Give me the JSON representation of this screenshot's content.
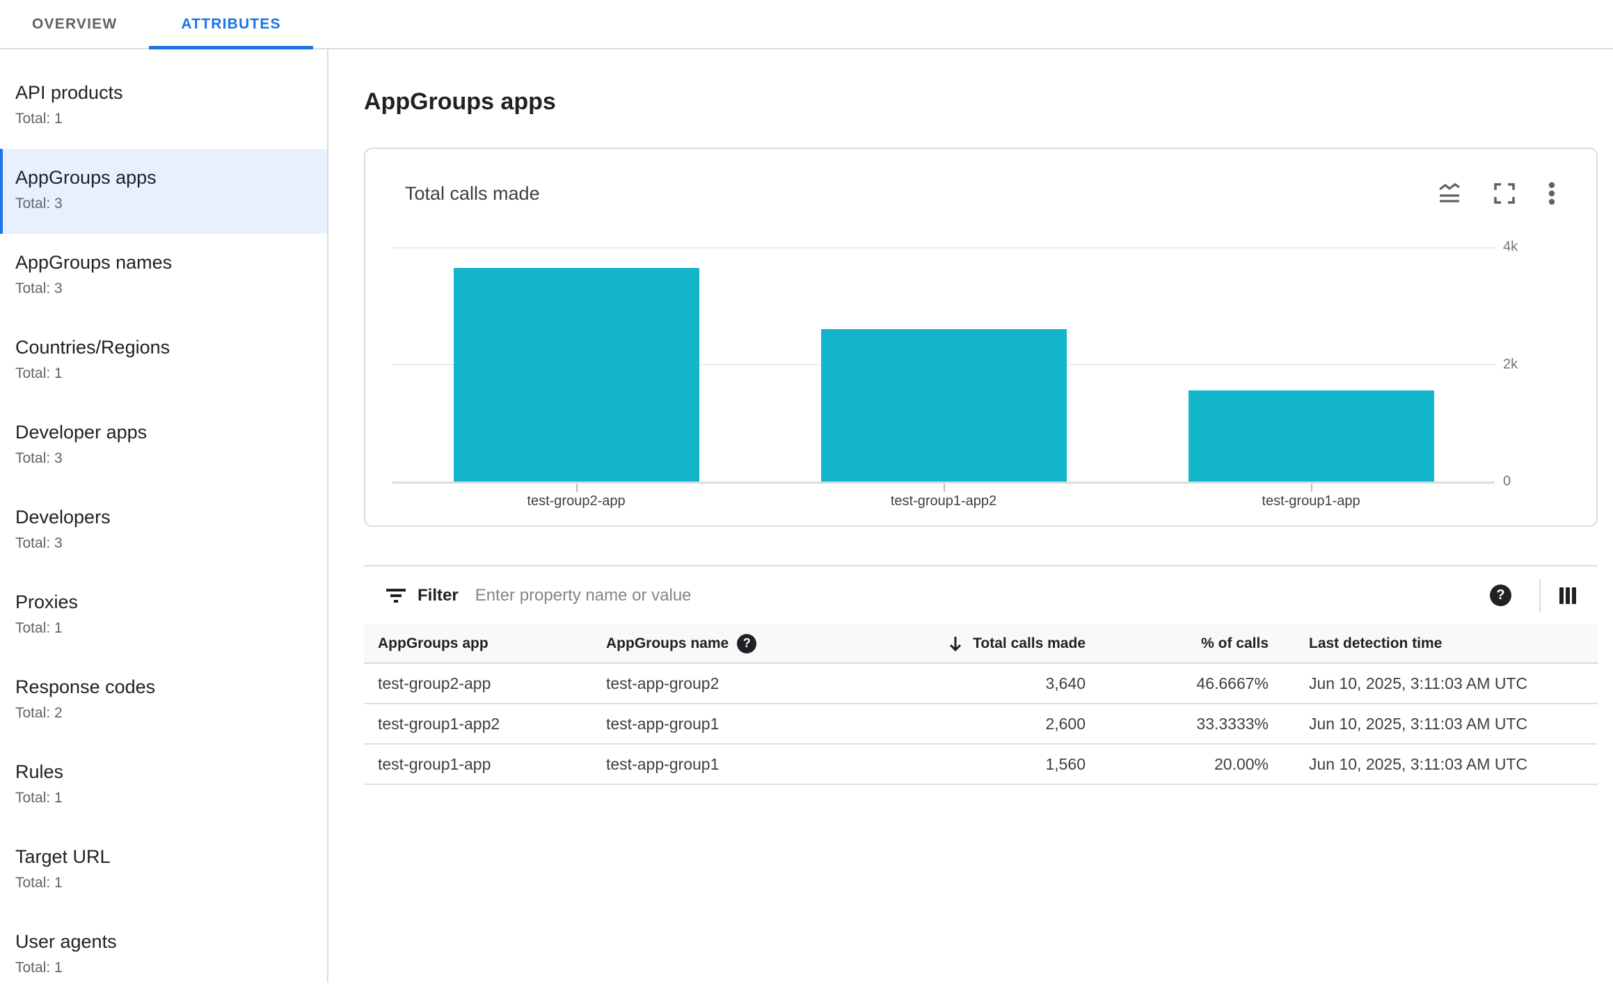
{
  "tabs": [
    {
      "label": "OVERVIEW",
      "active": false
    },
    {
      "label": "ATTRIBUTES",
      "active": true
    }
  ],
  "sidebar": {
    "items": [
      {
        "label": "API products",
        "total": "Total: 1",
        "selected": false
      },
      {
        "label": "AppGroups apps",
        "total": "Total: 3",
        "selected": true
      },
      {
        "label": "AppGroups names",
        "total": "Total: 3",
        "selected": false
      },
      {
        "label": "Countries/Regions",
        "total": "Total: 1",
        "selected": false
      },
      {
        "label": "Developer apps",
        "total": "Total: 3",
        "selected": false
      },
      {
        "label": "Developers",
        "total": "Total: 3",
        "selected": false
      },
      {
        "label": "Proxies",
        "total": "Total: 1",
        "selected": false
      },
      {
        "label": "Response codes",
        "total": "Total: 2",
        "selected": false
      },
      {
        "label": "Rules",
        "total": "Total: 1",
        "selected": false
      },
      {
        "label": "Target URL",
        "total": "Total: 1",
        "selected": false
      },
      {
        "label": "User agents",
        "total": "Total: 1",
        "selected": false
      }
    ]
  },
  "main": {
    "title": "AppGroups apps"
  },
  "chart_card": {
    "title": "Total calls made",
    "icons": [
      "chart-type-icon",
      "fullscreen-icon",
      "more-options-icon"
    ]
  },
  "chart_data": {
    "type": "bar",
    "title": "Total calls made",
    "categories": [
      "test-group2-app",
      "test-group1-app2",
      "test-group1-app"
    ],
    "values": [
      3640,
      2600,
      1560
    ],
    "xlabel": "",
    "ylabel": "",
    "ylim": [
      0,
      4000
    ],
    "ytick_labels": [
      "4k",
      "2k",
      "0"
    ],
    "grid": true,
    "legend": false,
    "color": "#13B5CB"
  },
  "filter": {
    "label": "Filter",
    "placeholder": "Enter property name or value"
  },
  "table": {
    "columns": [
      {
        "label": "AppGroups app"
      },
      {
        "label": "AppGroups name",
        "has_help": true
      },
      {
        "label": "Total calls made",
        "sorted": "desc"
      },
      {
        "label": "% of calls"
      },
      {
        "label": "Last detection time"
      }
    ],
    "rows": [
      {
        "app": "test-group2-app",
        "name": "test-app-group2",
        "calls": "3,640",
        "pct": "46.6667%",
        "time": "Jun 10, 2025, 3:11:03 AM UTC"
      },
      {
        "app": "test-group1-app2",
        "name": "test-app-group1",
        "calls": "2,600",
        "pct": "33.3333%",
        "time": "Jun 10, 2025, 3:11:03 AM UTC"
      },
      {
        "app": "test-group1-app",
        "name": "test-app-group1",
        "calls": "1,560",
        "pct": "20.00%",
        "time": "Jun 10, 2025, 3:11:03 AM UTC"
      }
    ]
  },
  "colors": {
    "accent": "#1A73E8",
    "bar": "#13B5CB",
    "selected_bg": "#E8F0FE",
    "border": "#DADCE0"
  },
  "help_glyph": "?"
}
